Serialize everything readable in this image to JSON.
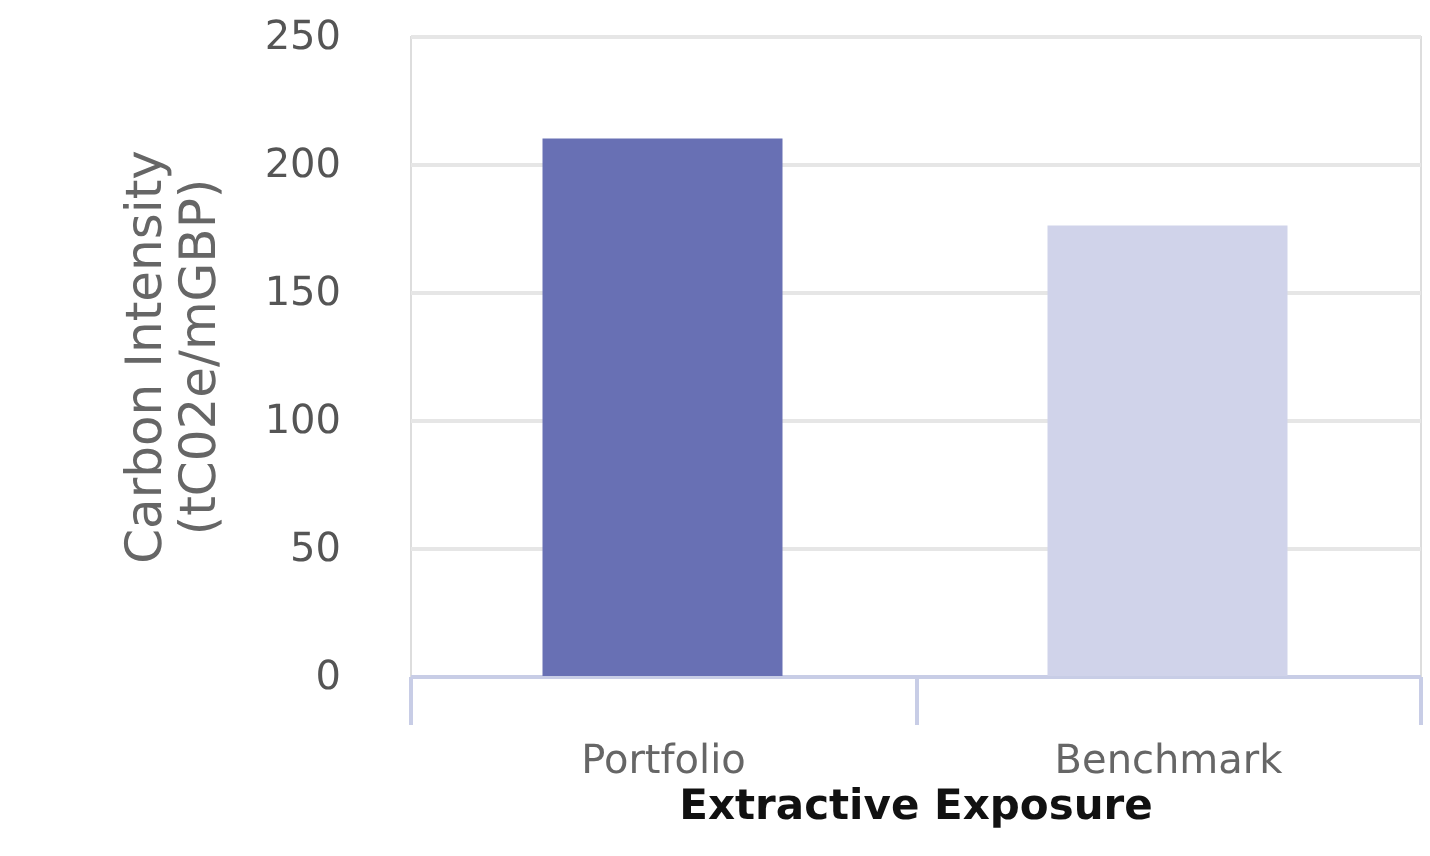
{
  "chart_data": {
    "type": "bar",
    "xlabel": "Extractive Exposure",
    "ylabel": "Carbon Intensity\n(tC02e/mGBP)",
    "categories": [
      "Portfolio",
      "Benchmark"
    ],
    "values": [
      210,
      176
    ],
    "colors": [
      "#6870b4",
      "#d0d3ea"
    ],
    "ylim": [
      0,
      250
    ],
    "yticks": [
      0,
      50,
      100,
      150,
      200,
      250
    ],
    "grid": "y"
  }
}
